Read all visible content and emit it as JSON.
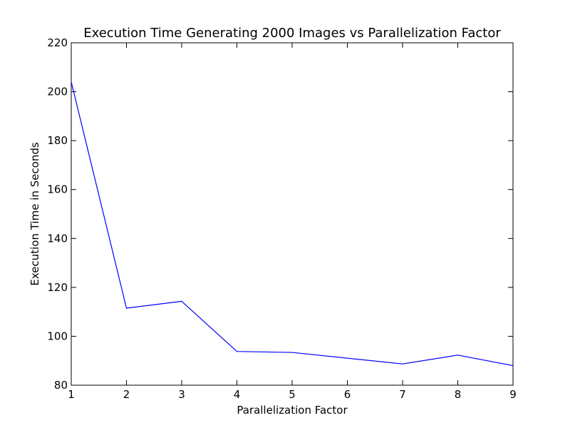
{
  "chart_data": {
    "type": "line",
    "title": "Execution Time Generating 2000 Images vs Parallelization Factor",
    "xlabel": "Parallelization Factor",
    "ylabel": "Execution Time in Seconds",
    "xlim": [
      1,
      9
    ],
    "ylim": [
      80,
      220
    ],
    "x_ticks": [
      1,
      2,
      3,
      4,
      5,
      6,
      7,
      8,
      9
    ],
    "y_ticks": [
      80,
      100,
      120,
      140,
      160,
      180,
      200,
      220
    ],
    "grid": false,
    "series": [
      {
        "color": "#0000ff",
        "x": [
          1,
          2,
          3,
          4,
          5,
          7,
          8,
          9
        ],
        "y": [
          204,
          111.5,
          114.3,
          93.8,
          93.4,
          88.7,
          92.3,
          88
        ]
      }
    ]
  }
}
